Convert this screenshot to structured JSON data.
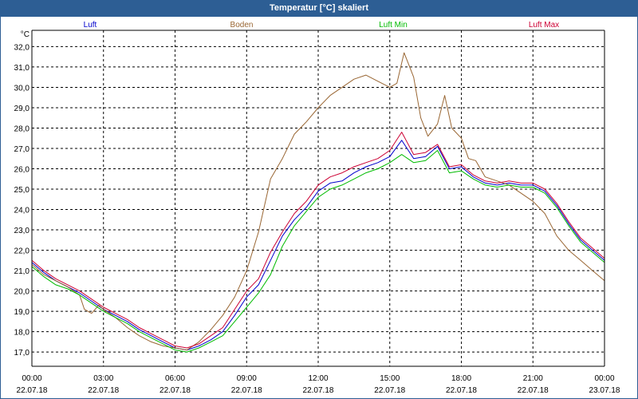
{
  "window": {
    "title": "Temperatur [°C] skaliert"
  },
  "chart_data": {
    "type": "line",
    "title": "Temperatur [°C] skaliert",
    "ylabel": "°C",
    "ylim": [
      16.3,
      32.8
    ],
    "xlim": [
      0,
      24
    ],
    "grid": true,
    "y_ticks": [
      17.0,
      18.0,
      19.0,
      20.0,
      21.0,
      22.0,
      23.0,
      24.0,
      25.0,
      26.0,
      27.0,
      28.0,
      29.0,
      30.0,
      31.0,
      32.0
    ],
    "y_tick_labels": [
      "17,0",
      "18,0",
      "19,0",
      "20,0",
      "21,0",
      "22,0",
      "23,0",
      "24,0",
      "25,0",
      "26,0",
      "27,0",
      "28,0",
      "29,0",
      "30,0",
      "31,0",
      "32,0"
    ],
    "x_ticks": [
      {
        "hour": 0,
        "time": "00:00",
        "date": "22.07.18"
      },
      {
        "hour": 3,
        "time": "03:00",
        "date": "22.07.18"
      },
      {
        "hour": 6,
        "time": "06:00",
        "date": "22.07.18"
      },
      {
        "hour": 9,
        "time": "09:00",
        "date": "22.07.18"
      },
      {
        "hour": 12,
        "time": "12:00",
        "date": "22.07.18"
      },
      {
        "hour": 15,
        "time": "15:00",
        "date": "22.07.18"
      },
      {
        "hour": 18,
        "time": "18:00",
        "date": "22.07.18"
      },
      {
        "hour": 21,
        "time": "21:00",
        "date": "22.07.18"
      },
      {
        "hour": 24,
        "time": "00:00",
        "date": "23.07.18"
      }
    ],
    "series": [
      {
        "name": "Luft",
        "color": "#0000cc",
        "legend_pos": "left",
        "x": [
          0,
          0.5,
          1,
          1.5,
          2,
          2.5,
          3,
          3.5,
          4,
          4.5,
          5,
          5.5,
          6,
          6.5,
          7,
          7.5,
          8,
          8.5,
          9,
          9.5,
          10,
          10.5,
          11,
          11.5,
          12,
          12.5,
          13,
          13.5,
          14,
          14.5,
          15,
          15.5,
          16,
          16.5,
          17,
          17.5,
          18,
          18.5,
          19,
          19.5,
          20,
          20.5,
          21,
          21.5,
          22,
          22.5,
          23,
          23.5,
          24
        ],
        "values": [
          21.4,
          20.9,
          20.5,
          20.2,
          19.9,
          19.5,
          19.1,
          18.8,
          18.5,
          18.1,
          17.8,
          17.5,
          17.2,
          17.1,
          17.3,
          17.6,
          18.0,
          18.8,
          19.7,
          20.3,
          21.5,
          22.7,
          23.5,
          24.1,
          24.9,
          25.3,
          25.4,
          25.8,
          26.1,
          26.3,
          26.6,
          27.4,
          26.5,
          26.6,
          27.1,
          26.0,
          26.1,
          25.6,
          25.3,
          25.2,
          25.3,
          25.2,
          25.2,
          24.9,
          24.2,
          23.3,
          22.5,
          22.0,
          21.5
        ]
      },
      {
        "name": "Boden",
        "color": "#996633",
        "legend_pos": "center",
        "x": [
          0,
          0.5,
          1,
          1.5,
          2,
          2.2,
          2.5,
          2.8,
          3,
          3.5,
          4,
          4.5,
          5,
          5.5,
          6,
          6.5,
          7,
          7.5,
          8,
          8.5,
          9,
          9.5,
          10,
          10.5,
          11,
          11.5,
          12,
          12.5,
          13,
          13.5,
          14,
          14.5,
          15,
          15.3,
          15.6,
          16,
          16.3,
          16.6,
          17,
          17.3,
          17.6,
          18,
          18.3,
          18.6,
          19,
          19.5,
          20,
          20.5,
          21,
          21.5,
          22,
          22.5,
          23,
          23.5,
          24
        ],
        "values": [
          21.3,
          20.8,
          20.5,
          20.2,
          19.8,
          19.1,
          18.9,
          19.3,
          19.1,
          18.7,
          18.2,
          17.8,
          17.5,
          17.3,
          17.2,
          17.1,
          17.5,
          18.1,
          18.8,
          19.7,
          21.0,
          22.9,
          25.5,
          26.5,
          27.7,
          28.3,
          29.0,
          29.6,
          30.0,
          30.4,
          30.6,
          30.3,
          30.0,
          30.2,
          31.7,
          30.5,
          28.5,
          27.6,
          28.2,
          29.6,
          28.0,
          27.5,
          26.5,
          26.4,
          25.6,
          25.4,
          25.2,
          24.8,
          24.4,
          23.8,
          22.7,
          22.0,
          21.5,
          21.0,
          20.5
        ]
      },
      {
        "name": "Luft Min",
        "color": "#00bb00",
        "legend_pos": "center-right",
        "x": [
          0,
          0.5,
          1,
          1.5,
          2,
          2.5,
          3,
          3.5,
          4,
          4.5,
          5,
          5.5,
          6,
          6.5,
          7,
          7.5,
          8,
          8.5,
          9,
          9.5,
          10,
          10.5,
          11,
          11.5,
          12,
          12.5,
          13,
          13.5,
          14,
          14.5,
          15,
          15.5,
          16,
          16.5,
          17,
          17.5,
          18,
          18.5,
          19,
          19.5,
          20,
          20.5,
          21,
          21.5,
          22,
          22.5,
          23,
          23.5,
          24
        ],
        "values": [
          21.2,
          20.7,
          20.3,
          20.1,
          19.8,
          19.4,
          19.0,
          18.7,
          18.4,
          18.0,
          17.7,
          17.4,
          17.1,
          17.0,
          17.2,
          17.5,
          17.8,
          18.5,
          19.2,
          19.9,
          20.8,
          22.2,
          23.2,
          23.9,
          24.6,
          25.0,
          25.2,
          25.5,
          25.8,
          26.0,
          26.3,
          26.7,
          26.3,
          26.4,
          26.9,
          25.8,
          25.9,
          25.5,
          25.2,
          25.1,
          25.2,
          25.1,
          25.1,
          24.8,
          24.1,
          23.2,
          22.4,
          21.9,
          21.4
        ]
      },
      {
        "name": "Luft Max",
        "color": "#cc0033",
        "legend_pos": "right",
        "x": [
          0,
          0.5,
          1,
          1.5,
          2,
          2.5,
          3,
          3.5,
          4,
          4.5,
          5,
          5.5,
          6,
          6.5,
          7,
          7.5,
          8,
          8.5,
          9,
          9.5,
          10,
          10.5,
          11,
          11.5,
          12,
          12.5,
          13,
          13.5,
          14,
          14.5,
          15,
          15.5,
          16,
          16.5,
          17,
          17.5,
          18,
          18.5,
          19,
          19.5,
          20,
          20.5,
          21,
          21.5,
          22,
          22.5,
          23,
          23.5,
          24
        ],
        "values": [
          21.5,
          21.0,
          20.6,
          20.3,
          20.0,
          19.6,
          19.2,
          18.9,
          18.6,
          18.2,
          17.9,
          17.6,
          17.3,
          17.2,
          17.4,
          17.8,
          18.2,
          19.1,
          20.0,
          20.6,
          21.9,
          22.9,
          23.8,
          24.4,
          25.2,
          25.6,
          25.8,
          26.1,
          26.3,
          26.5,
          26.9,
          27.8,
          26.7,
          26.8,
          27.2,
          26.1,
          26.2,
          25.7,
          25.4,
          25.3,
          25.4,
          25.3,
          25.3,
          25.0,
          24.3,
          23.4,
          22.6,
          22.1,
          21.6
        ]
      }
    ]
  }
}
